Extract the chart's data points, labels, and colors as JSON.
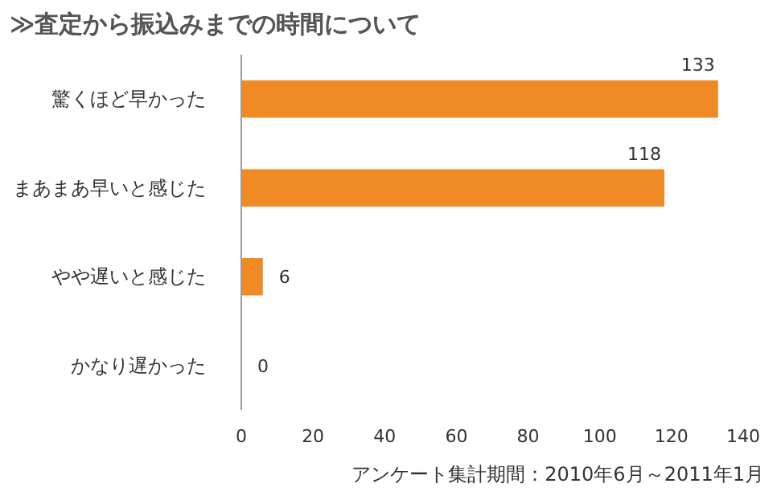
{
  "chart_data": {
    "type": "bar",
    "orientation": "horizontal",
    "title": "≫査定から振込みまでの時間について",
    "categories": [
      "驚くほど早かった",
      "まあまあ早いと感じた",
      "やや遅いと感じた",
      "かなり遅かった"
    ],
    "values": [
      133,
      118,
      6,
      0
    ],
    "color": "#f08a24",
    "xlim": [
      0,
      140
    ],
    "xticks": [
      0,
      20,
      40,
      60,
      80,
      100,
      120,
      140
    ],
    "data_labels": true,
    "grid": false,
    "annotations": [
      "アンケート集計期間：2010年6月～2011年1月"
    ]
  }
}
